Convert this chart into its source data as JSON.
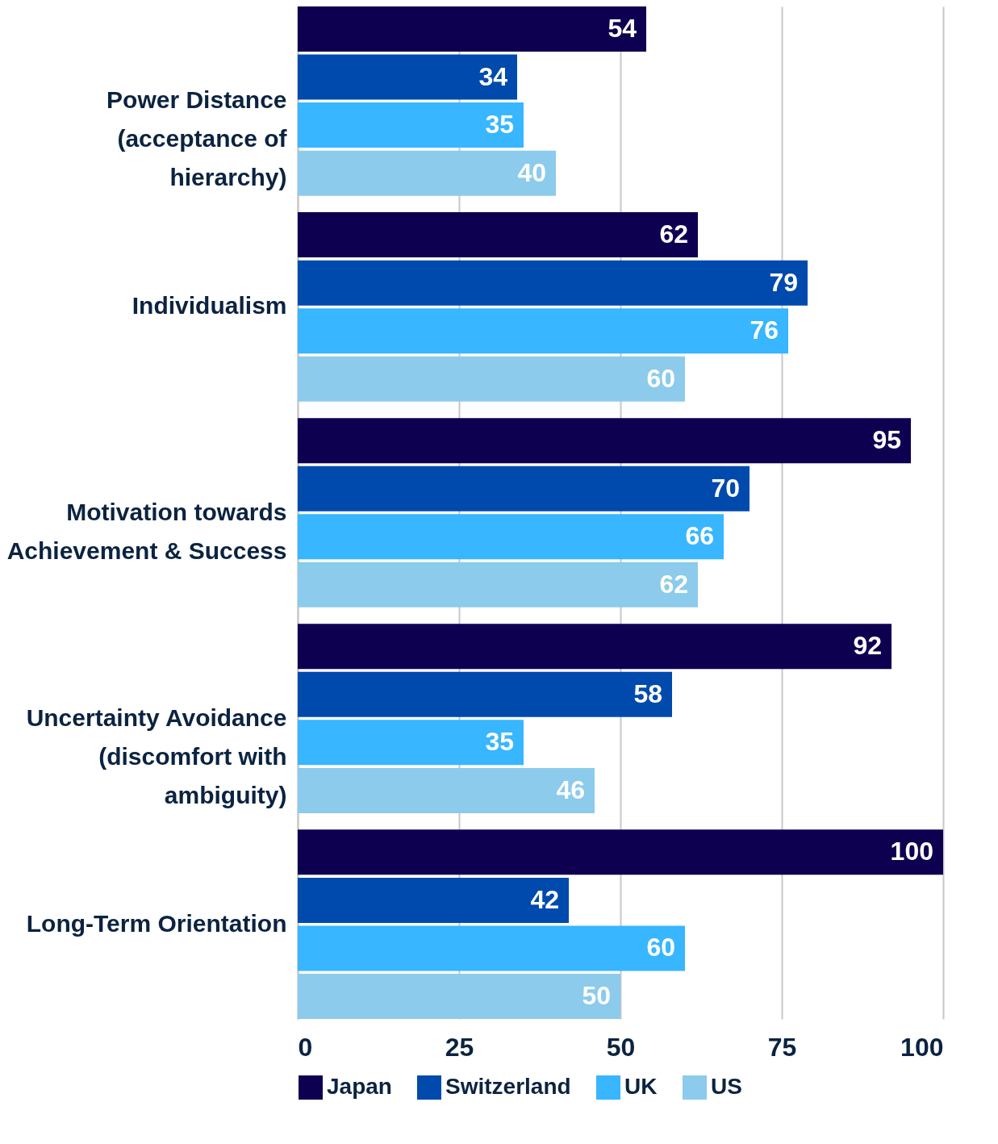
{
  "chart_data": {
    "type": "bar",
    "orientation": "horizontal",
    "categories": [
      "Power Distance (acceptance of hierarchy)",
      "Individualism",
      "Motivation towards Achievement & Success",
      "Uncertainty Avoidance (discomfort with ambiguity)",
      "Long-Term Orientation"
    ],
    "series": [
      {
        "name": "Japan",
        "color": "#0e0050",
        "values": [
          54,
          62,
          95,
          92,
          100
        ]
      },
      {
        "name": "Switzerland",
        "color": "#004aad",
        "values": [
          34,
          79,
          70,
          58,
          42
        ]
      },
      {
        "name": "UK",
        "color": "#38b6ff",
        "values": [
          35,
          76,
          66,
          35,
          60
        ]
      },
      {
        "name": "US",
        "color": "#8ccbeb",
        "values": [
          40,
          60,
          62,
          46,
          50
        ]
      }
    ],
    "xlim": [
      0,
      100
    ],
    "xticks": [
      0,
      25,
      50,
      75,
      100
    ],
    "grid": "x",
    "legend": "bottom",
    "data_labels": true
  }
}
